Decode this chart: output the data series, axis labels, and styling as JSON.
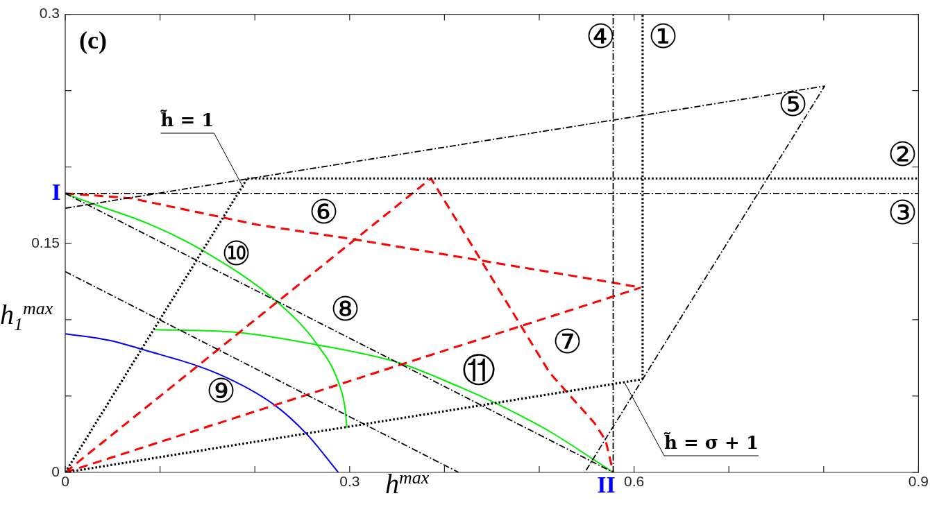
{
  "chart_data": {
    "type": "line",
    "title": "(c)",
    "xlabel": "h$^{max}$",
    "ylabel": "h$_{1}$$^{max}$",
    "xlim": [
      0,
      0.9
    ],
    "ylim": [
      0,
      0.3
    ],
    "xticks": [
      0,
      {
        "value": 0.1,
        "label": null
      },
      {
        "value": 0.2,
        "label": null
      },
      0.3,
      {
        "value": 0.4,
        "label": null
      },
      {
        "value": 0.5,
        "label": null
      },
      0.6,
      {
        "value": 0.7,
        "label": null
      },
      {
        "value": 0.8,
        "label": null
      },
      0.9
    ],
    "yticks": [
      0,
      {
        "value": 0.05,
        "label": null
      },
      {
        "value": 0.1,
        "label": null
      },
      0.15,
      {
        "value": 0.2,
        "label": null
      },
      {
        "value": 0.25,
        "label": null
      },
      0.3
    ],
    "grid": false,
    "legend": false,
    "marker": "none",
    "series": [
      {
        "name": "①",
        "color": "#000000",
        "line_style": "dotted",
        "x": [
          0.609,
          0.609
        ],
        "values": [
          0.061,
          0.3
        ]
      },
      {
        "name": "②",
        "color": "#000000",
        "line_style": "dotted",
        "x": [
          0.192,
          0.9
        ],
        "values": [
          0.1925,
          0.1925
        ]
      },
      {
        "name": "③",
        "color": "#000000",
        "line_style": "dashdot",
        "x": [
          0,
          0.9
        ],
        "values": [
          0.1827,
          0.1827
        ]
      },
      {
        "name": "④",
        "color": "#000000",
        "line_style": "dashdot",
        "x": [
          0.578,
          0.578
        ],
        "values": [
          0,
          0.3
        ]
      },
      {
        "name": "⑤",
        "color": "#000000",
        "line_style": "dashdot",
        "x": [
          0,
          0.801,
          0.548
        ],
        "values": [
          0.173,
          0.253,
          0
        ]
      },
      {
        "color": "#000000",
        "line_style": "dotted",
        "x": [
          0,
          0.192
        ],
        "values": [
          0,
          0.1925
        ]
      },
      {
        "color": "#000000",
        "line_style": "dotted",
        "x": [
          0,
          0.609
        ],
        "values": [
          0,
          0.061
        ]
      },
      {
        "name": "⑧",
        "color": "#000000",
        "line_style": "dashdot",
        "x": [
          0,
          0.578
        ],
        "values": [
          0.1827,
          0
        ]
      },
      {
        "color": "#000000",
        "line_style": "dashdot",
        "x": [
          0,
          0.415
        ],
        "values": [
          0.1315,
          0
        ]
      },
      {
        "name": "⑥",
        "color": "#ff0000",
        "line_style": "dashed",
        "x": [
          0,
          0.069,
          0.204,
          0.305,
          0.573,
          0.607
        ],
        "values": [
          0.1827,
          0.1796,
          0.162,
          0.1526,
          0.1248,
          0.121
        ]
      },
      {
        "name": "⑦",
        "color": "#ff0000",
        "line_style": "dashed",
        "x": [
          0,
          0.3857,
          0.424,
          0.511,
          0.558,
          0.57,
          0.578
        ],
        "values": [
          0,
          0.1925,
          0.1537,
          0.0652,
          0.0325,
          0.021,
          0
        ]
      },
      {
        "color": "#ff0000",
        "line_style": "dashed",
        "x": [
          0,
          0.607
        ],
        "values": [
          0,
          0.121
        ]
      },
      {
        "name": "⑩",
        "color": "#00ee00",
        "line_style": "solid",
        "x": [
          0,
          0.025,
          0.087,
          0.143,
          0.224,
          0.266,
          0.289,
          0.2955,
          0.297
        ],
        "values": [
          0.1827,
          0.1768,
          0.163,
          0.146,
          0.1114,
          0.0835,
          0.0575,
          0.0404,
          0.0293
        ]
      },
      {
        "name": "⑪",
        "color": "#00ee00",
        "line_style": "solid",
        "x": [
          0.095,
          0.1805,
          0.266,
          0.3515,
          0.417,
          0.455,
          0.511,
          0.555,
          0.578
        ],
        "values": [
          0.0935,
          0.0918,
          0.0835,
          0.0719,
          0.0557,
          0.045,
          0.0268,
          0.0094,
          0
        ]
      },
      {
        "name": "⑨",
        "color": "#0000ff",
        "line_style": "solid",
        "x": [
          0,
          0.0467,
          0.081,
          0.162,
          0.221,
          0.255,
          0.288
        ],
        "values": [
          0.0908,
          0.0864,
          0.0806,
          0.0643,
          0.044,
          0.0249,
          0
        ]
      }
    ],
    "annotations": [
      {
        "text": "I",
        "x": 0,
        "y": 0.1827
      },
      {
        "text": "II",
        "x": 0.578,
        "y": 0
      },
      {
        "text": "h̃ = 1",
        "x": 0.188,
        "y": 0.1863
      },
      {
        "text": "h̃ = σ + 1",
        "x": 0.59,
        "y": 0.0588
      }
    ]
  }
}
